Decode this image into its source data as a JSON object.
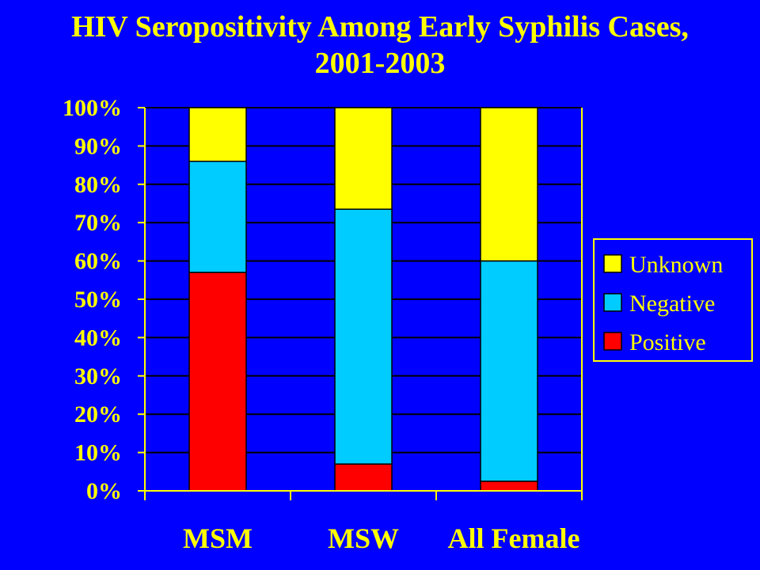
{
  "title": {
    "line1": "HIV Seropositivity Among Early Syphilis Cases,",
    "line2": "2001-2003"
  },
  "colors": {
    "background": "#0000FF",
    "text": "#FFFF00",
    "axis": "#FFFF00",
    "grid": "#000000",
    "Unknown": "#FFFF00",
    "Negative": "#00CCFF",
    "Positive": "#FF0000"
  },
  "chart_data": {
    "type": "bar",
    "stacked": true,
    "categories": [
      "MSM",
      "MSW",
      "All Female"
    ],
    "series": [
      {
        "name": "Positive",
        "values": [
          57,
          7,
          2.5
        ]
      },
      {
        "name": "Negative",
        "values": [
          29,
          66.5,
          57.5
        ]
      },
      {
        "name": "Unknown",
        "values": [
          14,
          26.5,
          40
        ]
      }
    ],
    "ylim": [
      0,
      100
    ],
    "yticks": [
      0,
      10,
      20,
      30,
      40,
      50,
      60,
      70,
      80,
      90,
      100
    ],
    "ytick_labels": [
      "0%",
      "10%",
      "20%",
      "30%",
      "40%",
      "50%",
      "60%",
      "70%",
      "80%",
      "90%",
      "100%"
    ],
    "grid": true,
    "legend": {
      "position": "right",
      "entries": [
        "Unknown",
        "Negative",
        "Positive"
      ]
    }
  }
}
